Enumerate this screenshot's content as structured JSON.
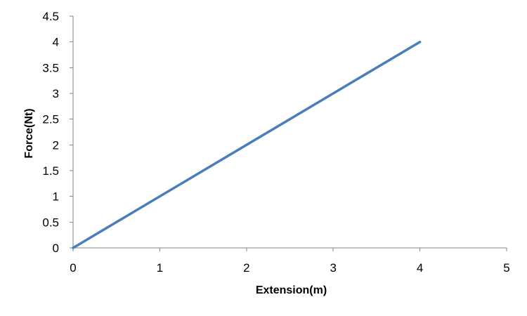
{
  "chart_data": {
    "type": "line",
    "title": "",
    "xlabel": "Extension(m)",
    "ylabel": "Force(Nt)",
    "xlim": [
      0,
      5
    ],
    "ylim": [
      0,
      4.5
    ],
    "x_ticks": [
      "0",
      "1",
      "2",
      "3",
      "4",
      "5"
    ],
    "y_ticks": [
      "0",
      "0.5",
      "1",
      "1.5",
      "2",
      "2.5",
      "3",
      "3.5",
      "4",
      "4.5"
    ],
    "grid": false,
    "legend": "none",
    "series": [
      {
        "color": "#4a7ebb",
        "x": [
          0,
          4
        ],
        "y": [
          0,
          4
        ]
      }
    ]
  }
}
